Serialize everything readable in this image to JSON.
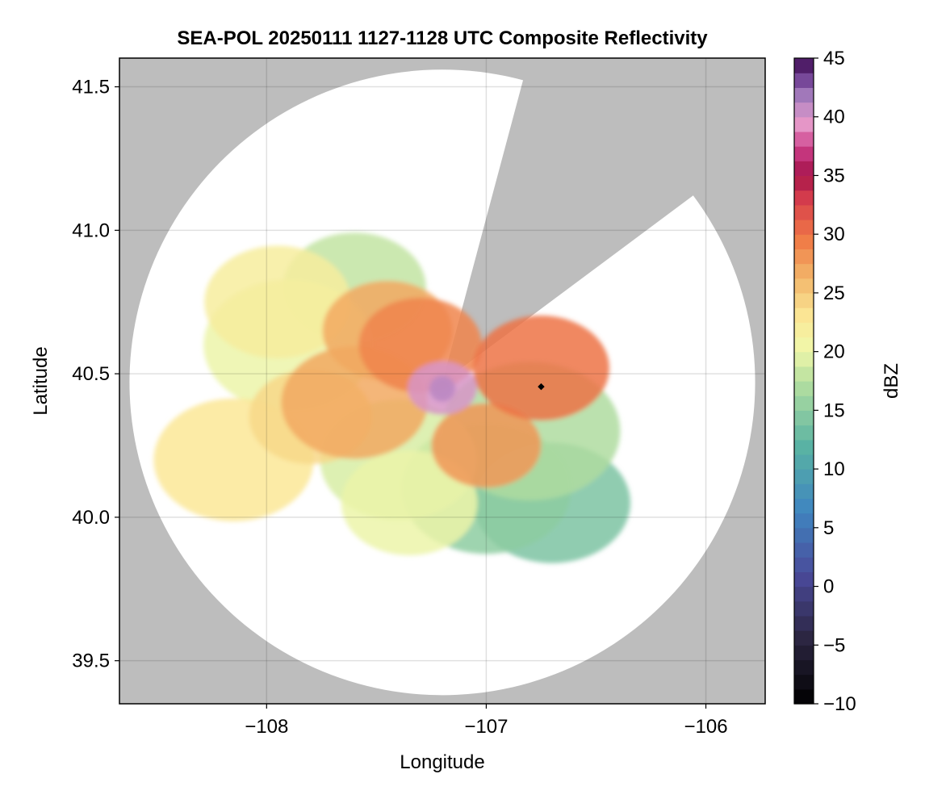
{
  "chart_data": {
    "type": "heatmap",
    "title": "SEA-POL 20250111 1127-1128 UTC Composite Reflectivity",
    "xlabel": "Longitude",
    "ylabel": "Latitude",
    "xlim": [
      -108.67,
      -105.73
    ],
    "ylim": [
      39.35,
      41.6
    ],
    "xticks": [
      -108,
      -107,
      -106
    ],
    "xtick_labels": [
      "−108",
      "−107",
      "−106"
    ],
    "yticks": [
      39.5,
      40.0,
      40.5,
      41.0,
      41.5
    ],
    "ytick_labels": [
      "39.5",
      "40.0",
      "40.5",
      "41.0",
      "41.5"
    ],
    "grid": true,
    "background_color": "#bdbdbd",
    "coverage_color": "#ffffff",
    "radar": {
      "center_lon": -107.2,
      "center_lat": 40.47,
      "range_deg_lat": 1.09,
      "blocked_sectors": [
        {
          "from_lon": -106.83,
          "from_lat": 41.53,
          "to_lon": -106.06,
          "to_lat": 41.12
        }
      ]
    },
    "colorbar": {
      "label": "dBZ",
      "range": [
        -10,
        45
      ],
      "ticks": [
        -10,
        -5,
        0,
        5,
        10,
        15,
        20,
        25,
        30,
        35,
        40,
        45
      ],
      "tick_labels": [
        "−10",
        "−5",
        "0",
        "5",
        "10",
        "15",
        "20",
        "25",
        "30",
        "35",
        "40",
        "45"
      ],
      "colormap": "Spectral_r",
      "levels": 44
    },
    "echo_regions": [
      {
        "lon": -107.2,
        "lat": 40.45,
        "dbz": 40
      },
      {
        "lon": -107.3,
        "lat": 40.6,
        "dbz": 29
      },
      {
        "lon": -107.45,
        "lat": 40.65,
        "dbz": 27
      },
      {
        "lon": -107.6,
        "lat": 40.4,
        "dbz": 27
      },
      {
        "lon": -107.8,
        "lat": 40.35,
        "dbz": 24
      },
      {
        "lon": -106.75,
        "lat": 40.52,
        "dbz": 30
      },
      {
        "lon": -107.0,
        "lat": 40.25,
        "dbz": 28
      },
      {
        "lon": -107.9,
        "lat": 40.6,
        "dbz": 20
      },
      {
        "lon": -107.6,
        "lat": 40.8,
        "dbz": 18
      },
      {
        "lon": -107.4,
        "lat": 40.2,
        "dbz": 19
      },
      {
        "lon": -106.8,
        "lat": 40.3,
        "dbz": 17
      },
      {
        "lon": -107.0,
        "lat": 40.1,
        "dbz": 15
      },
      {
        "lon": -106.7,
        "lat": 40.05,
        "dbz": 14
      },
      {
        "lon": -107.35,
        "lat": 40.05,
        "dbz": 20
      },
      {
        "lon": -108.15,
        "lat": 40.2,
        "dbz": 23
      },
      {
        "lon": -107.95,
        "lat": 40.75,
        "dbz": 22
      }
    ],
    "markers": [
      {
        "lon": -106.75,
        "lat": 40.455,
        "label": ""
      }
    ]
  }
}
